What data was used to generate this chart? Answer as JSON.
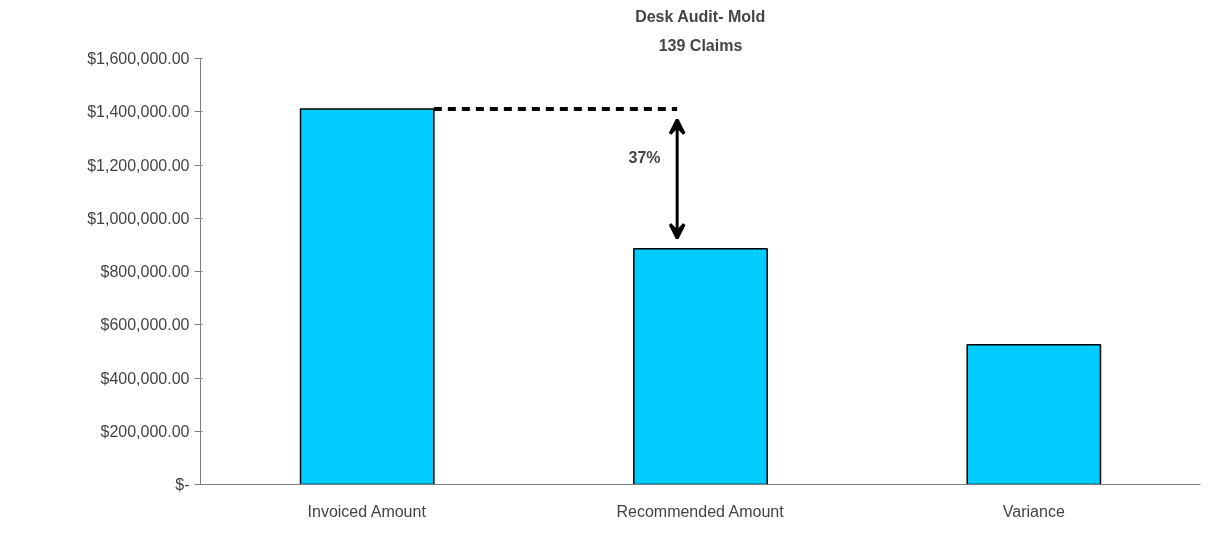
{
  "chart_data": {
    "type": "bar",
    "title": "Desk Audit- Mold",
    "subtitle": "139 Claims",
    "categories": [
      "Invoiced Amount",
      "Recommended Amount",
      "Variance"
    ],
    "values": [
      1410000,
      885000,
      525000
    ],
    "color": "#00ccff",
    "ylim": [
      0,
      1600000
    ],
    "yticks": [
      {
        "value": 0,
        "label": "$-"
      },
      {
        "value": 200000,
        "label": "$200,000.00"
      },
      {
        "value": 400000,
        "label": "$400,000.00"
      },
      {
        "value": 600000,
        "label": "$600,000.00"
      },
      {
        "value": 800000,
        "label": "$800,000.00"
      },
      {
        "value": 1000000,
        "label": "$1,000,000.00"
      },
      {
        "value": 1200000,
        "label": "$1,200,000.00"
      },
      {
        "value": 1400000,
        "label": "$1,400,000.00"
      },
      {
        "value": 1600000,
        "label": "$1,600,000.00"
      }
    ],
    "annotations": [
      "37%"
    ],
    "ref_lines": [
      {
        "axis": "y",
        "value": 1410000,
        "color": "#000000",
        "line_style": "dashed"
      }
    ],
    "grid": false
  }
}
